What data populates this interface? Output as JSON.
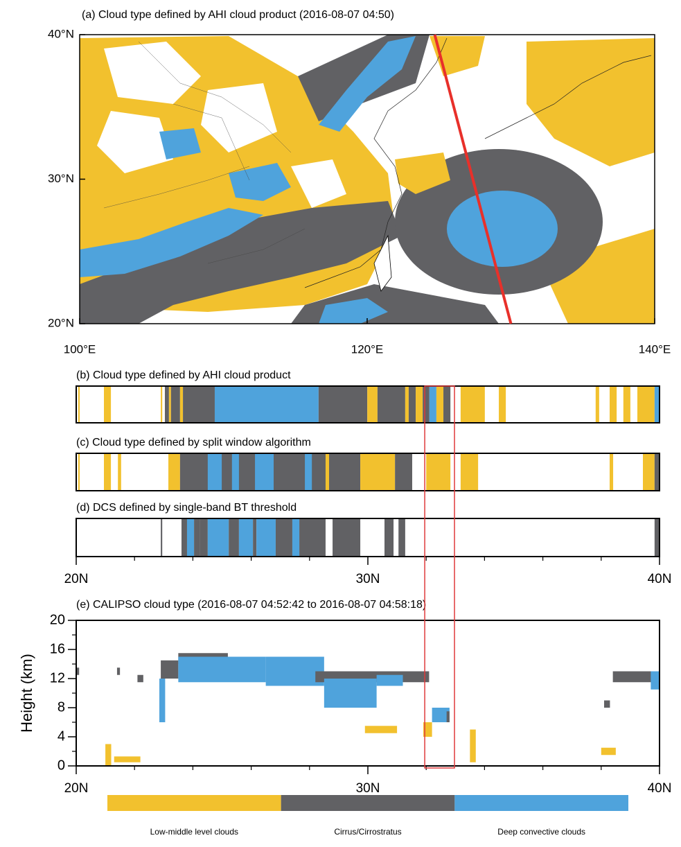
{
  "chart_data": [
    {
      "type": "map",
      "title": "(a) Cloud type defined by AHI cloud product  (2016-08-07 04:50)",
      "xlim": [
        100,
        140
      ],
      "ylim": [
        20,
        40
      ],
      "xticks": [
        {
          "value": 100,
          "label": "100°E"
        },
        {
          "value": 120,
          "label": "120°E"
        },
        {
          "value": 140,
          "label": "140°E"
        }
      ],
      "yticks": [
        {
          "value": 20,
          "label": "20°N"
        },
        {
          "value": 30,
          "label": "30°N"
        },
        {
          "value": 40,
          "label": "40°N"
        }
      ],
      "track": {
        "x": [
          124.7,
          130.0
        ],
        "y": [
          40,
          20
        ],
        "color": "#e8302a"
      }
    },
    {
      "type": "strip",
      "title": "(b) Cloud type defined by AHI cloud product",
      "xlim": [
        20,
        40
      ],
      "segments": [
        [
          20.07,
          20.12,
          0
        ],
        [
          20.95,
          21.19,
          0
        ],
        [
          22.9,
          22.95,
          0
        ],
        [
          23.04,
          23.18,
          1
        ],
        [
          23.18,
          23.25,
          0
        ],
        [
          23.25,
          23.56,
          1
        ],
        [
          23.56,
          23.66,
          0
        ],
        [
          23.66,
          24.75,
          1
        ],
        [
          24.75,
          28.31,
          2
        ],
        [
          28.31,
          29.98,
          1
        ],
        [
          29.98,
          30.33,
          0
        ],
        [
          30.33,
          31.28,
          1
        ],
        [
          31.28,
          31.4,
          0
        ],
        [
          31.4,
          31.64,
          1
        ],
        [
          31.64,
          31.88,
          0
        ],
        [
          31.88,
          32.11,
          1
        ],
        [
          32.11,
          32.35,
          2
        ],
        [
          32.35,
          32.59,
          0
        ],
        [
          32.59,
          32.83,
          1
        ],
        [
          33.18,
          34.01,
          0
        ],
        [
          34.49,
          34.73,
          0
        ],
        [
          37.81,
          37.93,
          0
        ],
        [
          38.29,
          38.53,
          0
        ],
        [
          38.76,
          39.0,
          0
        ],
        [
          39.24,
          39.83,
          0
        ],
        [
          39.83,
          40.0,
          2
        ]
      ]
    },
    {
      "type": "strip",
      "title": "(c) Cloud type defined by split window algorithm",
      "xlim": [
        20,
        40
      ],
      "segments": [
        [
          20.07,
          20.12,
          0
        ],
        [
          20.95,
          21.19,
          0
        ],
        [
          21.43,
          21.54,
          0
        ],
        [
          23.16,
          23.56,
          0
        ],
        [
          23.56,
          29.74,
          1
        ],
        [
          24.51,
          24.99,
          2
        ],
        [
          25.34,
          25.58,
          2
        ],
        [
          26.13,
          26.77,
          2
        ],
        [
          27.84,
          28.08,
          2
        ],
        [
          28.55,
          28.67,
          0
        ],
        [
          29.74,
          30.93,
          0
        ],
        [
          30.93,
          31.52,
          1
        ],
        [
          32.0,
          32.83,
          0
        ],
        [
          33.18,
          33.78,
          0
        ],
        [
          38.29,
          38.41,
          0
        ],
        [
          39.43,
          39.83,
          0
        ],
        [
          39.83,
          40.0,
          1
        ]
      ]
    },
    {
      "type": "strip",
      "title": "(d) DCS defined by single-band BT threshold",
      "xlim": [
        20,
        40
      ],
      "segments": [
        [
          22.9,
          22.95,
          1
        ],
        [
          23.61,
          23.8,
          1
        ],
        [
          23.8,
          24.04,
          2
        ],
        [
          24.04,
          24.23,
          1
        ],
        [
          24.23,
          24.51,
          1
        ],
        [
          24.51,
          25.23,
          2
        ],
        [
          25.23,
          25.58,
          1
        ],
        [
          25.58,
          26.06,
          2
        ],
        [
          26.06,
          26.18,
          1
        ],
        [
          26.18,
          26.84,
          2
        ],
        [
          26.84,
          27.41,
          1
        ],
        [
          27.41,
          27.65,
          2
        ],
        [
          27.65,
          28.55,
          1
        ],
        [
          28.79,
          29.74,
          1
        ],
        [
          30.57,
          30.88,
          1
        ],
        [
          31.05,
          31.28,
          1
        ],
        [
          39.83,
          40.0,
          1
        ]
      ],
      "xticks": [
        {
          "value": 20,
          "label": "20N"
        },
        {
          "value": 30,
          "label": "30N"
        },
        {
          "value": 40,
          "label": "40N"
        }
      ],
      "xminorticks": [
        22,
        24,
        26,
        28,
        32,
        34,
        36,
        38
      ]
    },
    {
      "type": "profile",
      "title": "(e) CALIPSO cloud type   (2016-08-07 04:52:42 to 2016-08-07 04:58:18)",
      "ylabel": "Height (km)",
      "xlim": [
        20,
        40
      ],
      "ylim": [
        0,
        20
      ],
      "xticks": [
        {
          "value": 20,
          "label": "20N"
        },
        {
          "value": 30,
          "label": "30N"
        },
        {
          "value": 40,
          "label": "40N"
        }
      ],
      "xminorticks": [
        22,
        24,
        26,
        28,
        32,
        34,
        36,
        38
      ],
      "yticks": [
        0,
        4,
        8,
        12,
        16,
        20
      ],
      "yminorticks": [
        2,
        6,
        10,
        14,
        18
      ],
      "highlight_xlim": [
        31.95,
        32.97
      ],
      "highlight_color": "#e0393a",
      "patches": [
        [
          20.0,
          20.1,
          12.5,
          13.5,
          1
        ],
        [
          21.4,
          21.5,
          12.5,
          13.5,
          1
        ],
        [
          22.1,
          22.3,
          11.5,
          12.5,
          1
        ],
        [
          22.9,
          23.5,
          12.0,
          14.5,
          1
        ],
        [
          22.85,
          23.05,
          6.0,
          12.0,
          2
        ],
        [
          23.5,
          25.2,
          14.0,
          15.5,
          1
        ],
        [
          23.5,
          26.5,
          11.5,
          15.0,
          2
        ],
        [
          26.5,
          28.5,
          11.0,
          15.0,
          2
        ],
        [
          28.2,
          32.1,
          11.5,
          13.0,
          1
        ],
        [
          28.5,
          30.3,
          8.0,
          12.0,
          2
        ],
        [
          30.3,
          31.2,
          11.0,
          12.5,
          2
        ],
        [
          32.2,
          32.8,
          6.0,
          8.0,
          2
        ],
        [
          32.7,
          32.8,
          6.0,
          7.5,
          1
        ],
        [
          29.9,
          31.0,
          4.5,
          5.5,
          0
        ],
        [
          31.9,
          32.2,
          4.0,
          6.0,
          0
        ],
        [
          21.3,
          22.2,
          0.5,
          1.3,
          0
        ],
        [
          21.0,
          21.2,
          0.0,
          3.0,
          0
        ],
        [
          33.5,
          33.7,
          0.5,
          5.0,
          0
        ],
        [
          38.0,
          38.5,
          1.5,
          2.5,
          0
        ],
        [
          38.1,
          38.3,
          8.0,
          9.0,
          1
        ],
        [
          38.4,
          40.0,
          11.5,
          13.0,
          1
        ],
        [
          39.7,
          40.0,
          10.5,
          13.0,
          2
        ]
      ]
    }
  ],
  "classes": [
    {
      "name": "Low-middle level clouds",
      "color": "#f2c12e"
    },
    {
      "name": "Cirrus/Cirrostratus",
      "color": "#616164"
    },
    {
      "name": "Deep convective clouds",
      "color": "#4fa3dc"
    }
  ]
}
